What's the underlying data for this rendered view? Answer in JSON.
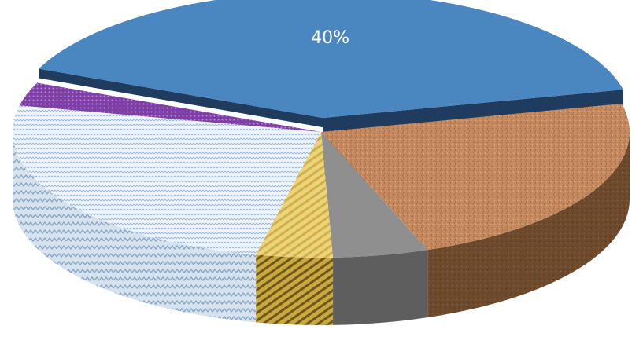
{
  "chart_data": {
    "type": "pie",
    "style": "3d-exploded",
    "slices": [
      {
        "value": 40,
        "label": "40%",
        "color": "#4a86c0",
        "side_color": "#1f3c5f",
        "pattern": "solid",
        "exploded": true
      },
      {
        "value": 23,
        "label": "",
        "color": "#c4895e",
        "side_color": "#6e4a2c",
        "pattern": "texture"
      },
      {
        "value": 5,
        "label": "",
        "color": "#8f8f8f",
        "side_color": "#5e5e5e",
        "pattern": "solid"
      },
      {
        "value": 4,
        "label": "",
        "color": "#ecd47a",
        "side_color": "#9c8230",
        "pattern": "stripes"
      },
      {
        "value": 25,
        "label": "",
        "color": "#e3edf7",
        "side_color": "#b6c9db",
        "pattern": "zigzag"
      },
      {
        "value": 3,
        "label": "",
        "color": "#7e3fa6",
        "side_color": "#4b2566",
        "pattern": "dots"
      }
    ]
  }
}
